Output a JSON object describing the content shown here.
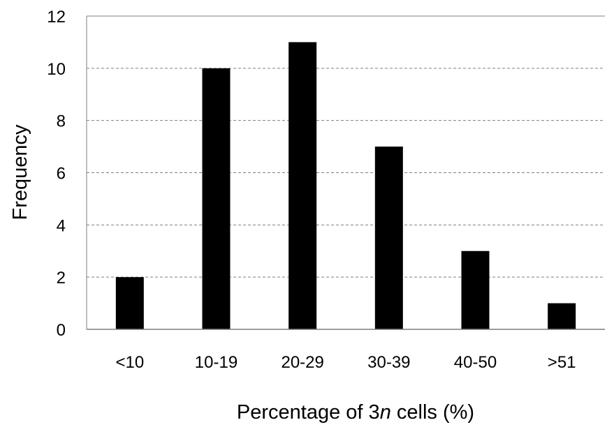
{
  "chart_data": {
    "type": "bar",
    "categories": [
      "<10",
      "10-19",
      "20-29",
      "30-39",
      "40-50",
      ">51"
    ],
    "values": [
      2,
      10,
      11,
      7,
      3,
      1
    ],
    "xlabel": {
      "before": "Percentage of 3",
      "italic": "n",
      "after": " cells (%)"
    },
    "ylabel": "Frequency",
    "ylim": [
      0,
      12
    ],
    "yticks": [
      "0",
      "2",
      "4",
      "6",
      "8",
      "10",
      "12"
    ],
    "grid": "horizontal-dashed",
    "bar_color": "#000000",
    "grid_color": "#7f7f7f"
  }
}
